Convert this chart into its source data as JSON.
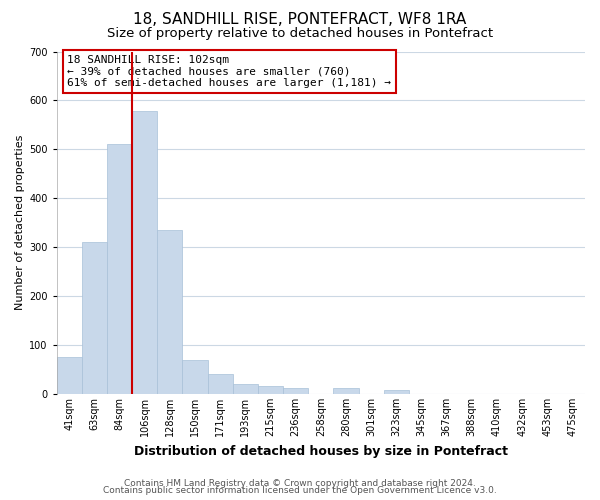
{
  "title": "18, SANDHILL RISE, PONTEFRACT, WF8 1RA",
  "subtitle": "Size of property relative to detached houses in Pontefract",
  "xlabel": "Distribution of detached houses by size in Pontefract",
  "ylabel": "Number of detached properties",
  "bar_labels": [
    "41sqm",
    "63sqm",
    "84sqm",
    "106sqm",
    "128sqm",
    "150sqm",
    "171sqm",
    "193sqm",
    "215sqm",
    "236sqm",
    "258sqm",
    "280sqm",
    "301sqm",
    "323sqm",
    "345sqm",
    "367sqm",
    "388sqm",
    "410sqm",
    "432sqm",
    "453sqm",
    "475sqm"
  ],
  "bar_values": [
    75,
    310,
    510,
    578,
    335,
    70,
    40,
    20,
    17,
    12,
    0,
    13,
    0,
    8,
    0,
    0,
    0,
    0,
    0,
    0,
    0
  ],
  "bar_color": "#c8d8ea",
  "bar_edge_color": "#a8c0d8",
  "property_line_color": "#cc0000",
  "annotation_title": "18 SANDHILL RISE: 102sqm",
  "annotation_line1": "← 39% of detached houses are smaller (760)",
  "annotation_line2": "61% of semi-detached houses are larger (1,181) →",
  "annotation_box_color": "#ffffff",
  "annotation_box_edge": "#cc0000",
  "ylim": [
    0,
    700
  ],
  "yticks": [
    0,
    100,
    200,
    300,
    400,
    500,
    600,
    700
  ],
  "footer_line1": "Contains HM Land Registry data © Crown copyright and database right 2024.",
  "footer_line2": "Contains public sector information licensed under the Open Government Licence v3.0.",
  "bg_color": "#ffffff",
  "grid_color": "#ccd8e4",
  "title_fontsize": 11,
  "subtitle_fontsize": 9.5,
  "xlabel_fontsize": 9,
  "ylabel_fontsize": 8,
  "tick_fontsize": 7,
  "annotation_fontsize": 8,
  "footer_fontsize": 6.5
}
